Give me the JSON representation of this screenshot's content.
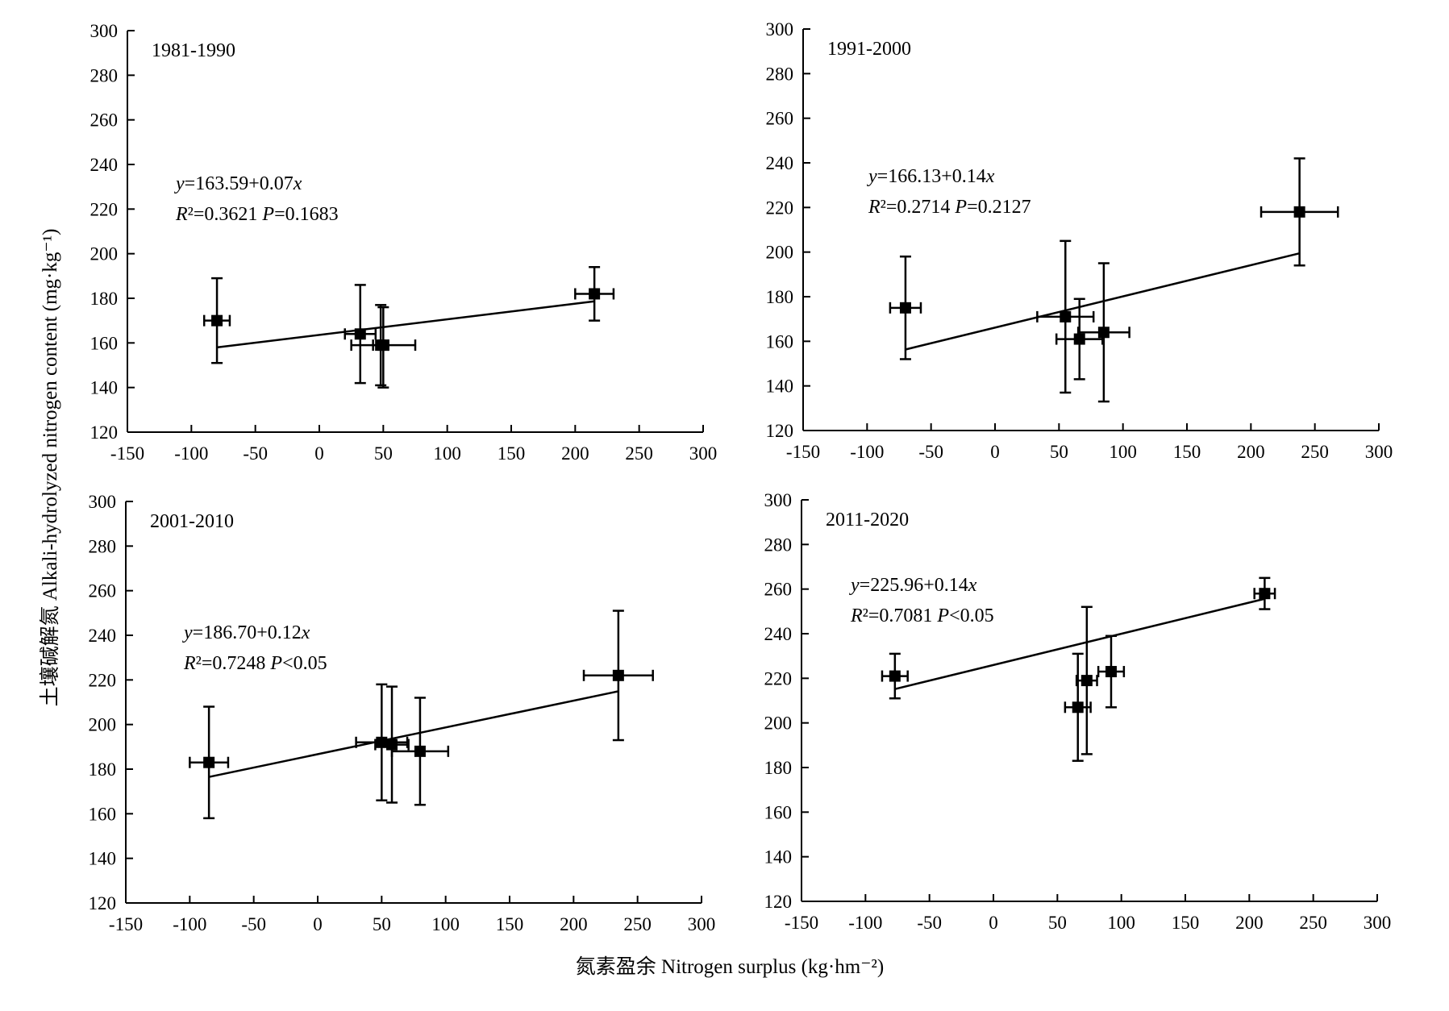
{
  "figure": {
    "ylabel": "土壤碱解氮 Alkali-hydrolyzed nitrogen content (mg·kg⁻¹)",
    "xlabel": "氮素盈余 Nitrogen surplus (kg·hm⁻²)"
  },
  "chart_data": [
    {
      "type": "scatter",
      "title": "1981-1990",
      "xlim": [
        -150,
        300
      ],
      "ylim": [
        120,
        300
      ],
      "x_ticks": [
        -150,
        -100,
        -50,
        0,
        50,
        100,
        150,
        200,
        250,
        300
      ],
      "y_ticks": [
        120,
        140,
        160,
        180,
        200,
        220,
        240,
        260,
        280,
        300
      ],
      "equation": "y=163.59+0.07x",
      "stats": "R²=0.3621   P=0.1683",
      "fit": {
        "intercept": 163.59,
        "slope": 0.07,
        "x_range": [
          -80,
          215
        ]
      },
      "points": [
        {
          "x": -80,
          "y": 170,
          "xerr": 10,
          "yerr_low": 19,
          "yerr_high": 19
        },
        {
          "x": 32,
          "y": 164,
          "xerr": 12,
          "yerr_low": 22,
          "yerr_high": 22
        },
        {
          "x": 48,
          "y": 159,
          "xerr": 6,
          "yerr_low": 18,
          "yerr_high": 18
        },
        {
          "x": 50,
          "y": 159,
          "xerr": 25,
          "yerr_low": 19,
          "yerr_high": 17
        },
        {
          "x": 215,
          "y": 182,
          "xerr": 15,
          "yerr_low": 12,
          "yerr_high": 12
        }
      ]
    },
    {
      "type": "scatter",
      "title": "1991-2000",
      "xlim": [
        -150,
        300
      ],
      "ylim": [
        120,
        300
      ],
      "x_ticks": [
        -150,
        -100,
        -50,
        0,
        50,
        100,
        150,
        200,
        250,
        300
      ],
      "y_ticks": [
        120,
        140,
        160,
        180,
        200,
        220,
        240,
        260,
        280,
        300
      ],
      "equation": "y=166.13+0.14x",
      "stats": "R²=0.2714   P=0.2127",
      "fit": {
        "intercept": 166.13,
        "slope": 0.14,
        "x_range": [
          -70,
          238
        ]
      },
      "points": [
        {
          "x": -70,
          "y": 175,
          "xerr": 12,
          "yerr_low": 23,
          "yerr_high": 23
        },
        {
          "x": 55,
          "y": 171,
          "xerr": 22,
          "yerr_low": 34,
          "yerr_high": 34
        },
        {
          "x": 66,
          "y": 161,
          "xerr": 18,
          "yerr_low": 18,
          "yerr_high": 18
        },
        {
          "x": 85,
          "y": 164,
          "xerr": 20,
          "yerr_low": 31,
          "yerr_high": 31
        },
        {
          "x": 238,
          "y": 218,
          "xerr": 30,
          "yerr_low": 24,
          "yerr_high": 24
        }
      ]
    },
    {
      "type": "scatter",
      "title": "2001-2010",
      "xlim": [
        -150,
        300
      ],
      "ylim": [
        120,
        300
      ],
      "x_ticks": [
        -150,
        -100,
        -50,
        0,
        50,
        100,
        150,
        200,
        250,
        300
      ],
      "y_ticks": [
        120,
        140,
        160,
        180,
        200,
        220,
        240,
        260,
        280,
        300
      ],
      "equation": "y=186.70+0.12x",
      "stats": "R²=0.7248   P<0.05",
      "fit": {
        "intercept": 186.7,
        "slope": 0.12,
        "x_range": [
          -85,
          235
        ]
      },
      "points": [
        {
          "x": -85,
          "y": 183,
          "xerr": 15,
          "yerr_low": 25,
          "yerr_high": 25
        },
        {
          "x": 50,
          "y": 192,
          "xerr": 20,
          "yerr_low": 26,
          "yerr_high": 26
        },
        {
          "x": 58,
          "y": 191,
          "xerr": 13,
          "yerr_low": 26,
          "yerr_high": 26
        },
        {
          "x": 80,
          "y": 188,
          "xerr": 22,
          "yerr_low": 24,
          "yerr_high": 24
        },
        {
          "x": 235,
          "y": 222,
          "xerr": 27,
          "yerr_low": 29,
          "yerr_high": 29
        }
      ]
    },
    {
      "type": "scatter",
      "title": "2011-2020",
      "xlim": [
        -150,
        300
      ],
      "ylim": [
        120,
        300
      ],
      "x_ticks": [
        -150,
        -100,
        -50,
        0,
        50,
        100,
        150,
        200,
        250,
        300
      ],
      "y_ticks": [
        120,
        140,
        160,
        180,
        200,
        220,
        240,
        260,
        280,
        300
      ],
      "equation": "y=225.96+0.14x",
      "stats": "R²=0.7081   P<0.05",
      "fit": {
        "intercept": 225.96,
        "slope": 0.14,
        "x_range": [
          -77,
          212
        ]
      },
      "points": [
        {
          "x": -77,
          "y": 221,
          "xerr": 10,
          "yerr_low": 10,
          "yerr_high": 10
        },
        {
          "x": 66,
          "y": 207,
          "xerr": 10,
          "yerr_low": 24,
          "yerr_high": 24
        },
        {
          "x": 73,
          "y": 219,
          "xerr": 8,
          "yerr_low": 33,
          "yerr_high": 33
        },
        {
          "x": 92,
          "y": 223,
          "xerr": 10,
          "yerr_low": 16,
          "yerr_high": 16
        },
        {
          "x": 212,
          "y": 258,
          "xerr": 8,
          "yerr_low": 7,
          "yerr_high": 7
        }
      ]
    }
  ]
}
